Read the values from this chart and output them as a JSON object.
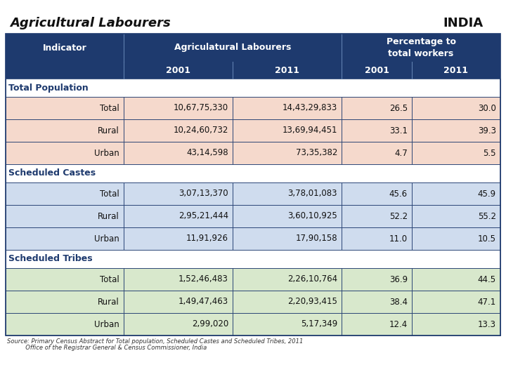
{
  "title_left": "Agricultural Labourers",
  "title_right": "INDIA",
  "col_header1": "Agriculatural Labourers",
  "col_header2": "Percentage to\ntotal workers",
  "sub_headers": [
    "2001",
    "2011",
    "2001",
    "2011"
  ],
  "sections": [
    {
      "name": "Total Population",
      "bg_color": "#f5d9cc",
      "rows": [
        [
          "Total",
          "10,67,75,330",
          "14,43,29,833",
          "26.5",
          "30.0"
        ],
        [
          "Rural",
          "10,24,60,732",
          "13,69,94,451",
          "33.1",
          "39.3"
        ],
        [
          "Urban",
          "43,14,598",
          "73,35,382",
          "4.7",
          "5.5"
        ]
      ]
    },
    {
      "name": "Scheduled Castes",
      "bg_color": "#cfdcee",
      "rows": [
        [
          "Total",
          "3,07,13,370",
          "3,78,01,083",
          "45.6",
          "45.9"
        ],
        [
          "Rural",
          "2,95,21,444",
          "3,60,10,925",
          "52.2",
          "55.2"
        ],
        [
          "Urban",
          "11,91,926",
          "17,90,158",
          "11.0",
          "10.5"
        ]
      ]
    },
    {
      "name": "Scheduled Tribes",
      "bg_color": "#d8e8cc",
      "rows": [
        [
          "Total",
          "1,52,46,483",
          "2,26,10,764",
          "36.9",
          "44.5"
        ],
        [
          "Rural",
          "1,49,47,463",
          "2,20,93,415",
          "38.4",
          "47.1"
        ],
        [
          "Urban",
          "2,99,020",
          "5,17,349",
          "12.4",
          "13.3"
        ]
      ]
    }
  ],
  "source_line1": "Source: Primary Census Abstract for Total population, Scheduled Castes and Scheduled Tribes, 2011",
  "source_line2": "          Office of the Registrar General & Census Commissioner, India",
  "header_bg": "#1e3a6e",
  "header_text_color": "#ffffff",
  "section_text_color": "#1e3a6e",
  "body_text_color": "#111111",
  "border_color": "#1e3a6e",
  "bg_color": "#ffffff"
}
